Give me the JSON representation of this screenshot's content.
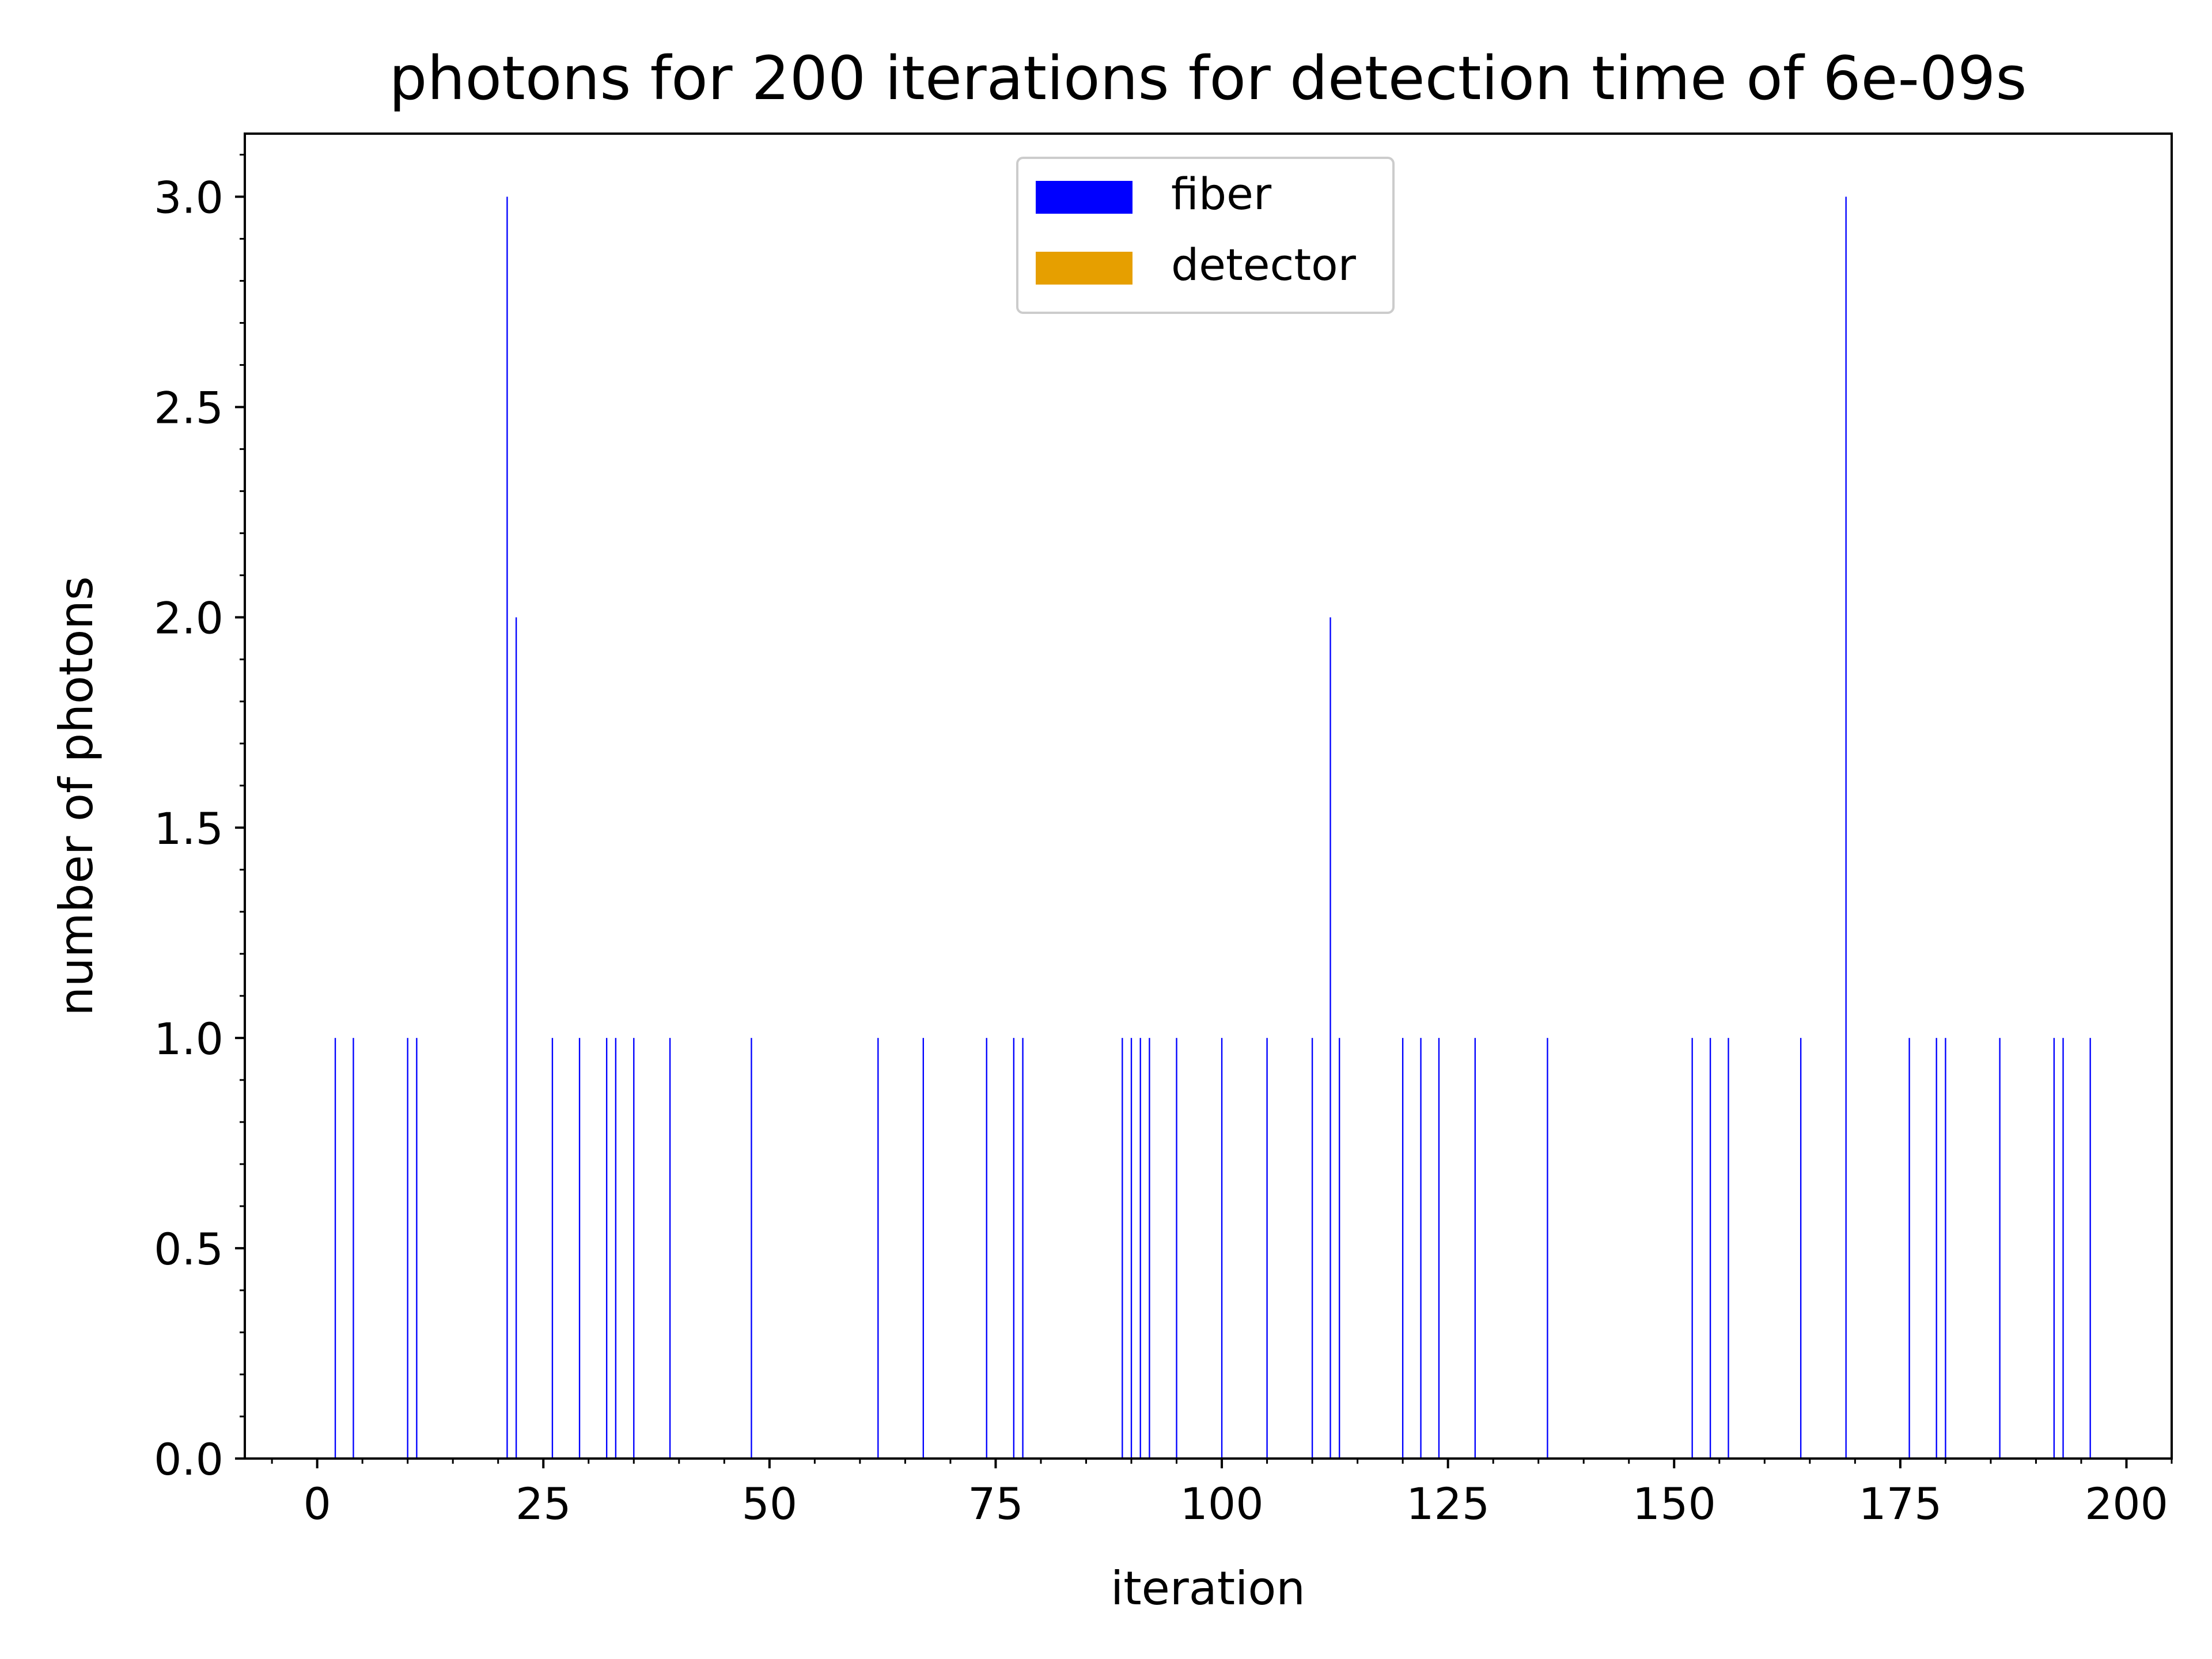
{
  "chart_data": {
    "type": "bar",
    "title": "photons for 200 iterations for detection time of 6e-09s",
    "xlabel": "iteration",
    "ylabel": "number of photons",
    "xlim": [
      -8,
      205
    ],
    "ylim": [
      0,
      3.15
    ],
    "x_ticks": [
      0,
      25,
      50,
      75,
      100,
      125,
      150,
      175,
      200
    ],
    "x_tick_labels": [
      "0",
      "25",
      "50",
      "75",
      "100",
      "125",
      "150",
      "175",
      "200"
    ],
    "y_ticks": [
      0.0,
      0.5,
      1.0,
      1.5,
      2.0,
      2.5,
      3.0
    ],
    "y_tick_labels": [
      "0.0",
      "0.5",
      "1.0",
      "1.5",
      "2.0",
      "2.5",
      "3.0"
    ],
    "grid": false,
    "legend_position": "top-center",
    "series": [
      {
        "name": "fiber",
        "color": "#0000ff",
        "points": [
          [
            2,
            1
          ],
          [
            4,
            1
          ],
          [
            10,
            1
          ],
          [
            11,
            1
          ],
          [
            21,
            3
          ],
          [
            22,
            2
          ],
          [
            26,
            1
          ],
          [
            29,
            1
          ],
          [
            32,
            1
          ],
          [
            33,
            1
          ],
          [
            35,
            1
          ],
          [
            39,
            1
          ],
          [
            48,
            1
          ],
          [
            62,
            1
          ],
          [
            67,
            1
          ],
          [
            74,
            1
          ],
          [
            77,
            1
          ],
          [
            78,
            1
          ],
          [
            89,
            1
          ],
          [
            90,
            1
          ],
          [
            91,
            1
          ],
          [
            92,
            1
          ],
          [
            95,
            1
          ],
          [
            100,
            1
          ],
          [
            105,
            1
          ],
          [
            110,
            1
          ],
          [
            112,
            2
          ],
          [
            113,
            1
          ],
          [
            120,
            1
          ],
          [
            122,
            1
          ],
          [
            124,
            1
          ],
          [
            128,
            1
          ],
          [
            136,
            1
          ],
          [
            152,
            1
          ],
          [
            154,
            1
          ],
          [
            156,
            1
          ],
          [
            164,
            1
          ],
          [
            169,
            3
          ],
          [
            176,
            1
          ],
          [
            179,
            1
          ],
          [
            180,
            1
          ],
          [
            186,
            1
          ],
          [
            192,
            1
          ],
          [
            193,
            1
          ],
          [
            196,
            1
          ]
        ]
      },
      {
        "name": "detector",
        "color": "#e69f00",
        "points": []
      }
    ]
  }
}
